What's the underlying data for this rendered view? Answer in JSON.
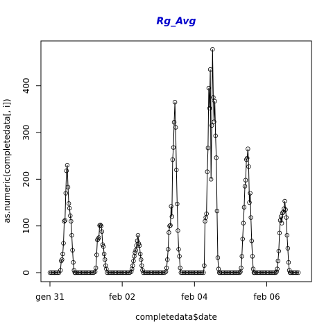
{
  "chart_data": {
    "type": "line",
    "title": "Rg_Avg",
    "xlabel": "completedata$date",
    "ylabel": "as.numeric(completedata[, i])",
    "x_unit": "hours from gen 31 00:00",
    "xlim": [
      -1,
      151
    ],
    "ylim": [
      -20,
      505
    ],
    "x_ticks": [
      {
        "label": "gen 31",
        "value": 0
      },
      {
        "label": "feb 02",
        "value": 48
      },
      {
        "label": "feb 04",
        "value": 96
      },
      {
        "label": "feb 06",
        "value": 144
      }
    ],
    "y_ticks": [
      0,
      100,
      200,
      300,
      400
    ],
    "grid": false,
    "legend": "none",
    "marker": "open-circle",
    "series": [
      {
        "points": [
          [
            0,
            0
          ],
          [
            1,
            0
          ],
          [
            2,
            0
          ],
          [
            3,
            0
          ],
          [
            4,
            0
          ],
          [
            5,
            0
          ],
          [
            6,
            0
          ],
          [
            7,
            5
          ],
          [
            7.5,
            25
          ],
          [
            8,
            28
          ],
          [
            8.5,
            40
          ],
          [
            9,
            63
          ],
          [
            9.5,
            110
          ],
          [
            10,
            112
          ],
          [
            10.5,
            170
          ],
          [
            11,
            218
          ],
          [
            11.5,
            230
          ],
          [
            12,
            183
          ],
          [
            12.5,
            148
          ],
          [
            13,
            138
          ],
          [
            13.5,
            122
          ],
          [
            14,
            110
          ],
          [
            14.5,
            80
          ],
          [
            15,
            48
          ],
          [
            15.5,
            22
          ],
          [
            16,
            5
          ],
          [
            16.5,
            0
          ],
          [
            17,
            0
          ],
          [
            18,
            0
          ],
          [
            19,
            0
          ],
          [
            20,
            0
          ],
          [
            21,
            0
          ],
          [
            22,
            0
          ],
          [
            23,
            0
          ],
          [
            24,
            0
          ],
          [
            25,
            0
          ],
          [
            26,
            0
          ],
          [
            27,
            0
          ],
          [
            28,
            0
          ],
          [
            29,
            0
          ],
          [
            30,
            2
          ],
          [
            30.5,
            10
          ],
          [
            31,
            38
          ],
          [
            31.5,
            70
          ],
          [
            32,
            72
          ],
          [
            32.5,
            75
          ],
          [
            33,
            101
          ],
          [
            33.5,
            102
          ],
          [
            34,
            100
          ],
          [
            34.5,
            88
          ],
          [
            35,
            60
          ],
          [
            35.5,
            56
          ],
          [
            36,
            40
          ],
          [
            36.5,
            28
          ],
          [
            37,
            15
          ],
          [
            37.5,
            8
          ],
          [
            38,
            0
          ],
          [
            39,
            0
          ],
          [
            40,
            0
          ],
          [
            41,
            0
          ],
          [
            42,
            0
          ],
          [
            43,
            0
          ],
          [
            44,
            0
          ],
          [
            45,
            0
          ],
          [
            46,
            0
          ],
          [
            47,
            0
          ],
          [
            48,
            0
          ],
          [
            49,
            0
          ],
          [
            50,
            0
          ],
          [
            51,
            0
          ],
          [
            52,
            0
          ],
          [
            53,
            0
          ],
          [
            54,
            2
          ],
          [
            54.5,
            8
          ],
          [
            55,
            15
          ],
          [
            55.5,
            25
          ],
          [
            56,
            35
          ],
          [
            56.5,
            43
          ],
          [
            57,
            48
          ],
          [
            57.5,
            58
          ],
          [
            58,
            68
          ],
          [
            58.5,
            80
          ],
          [
            59,
            62
          ],
          [
            59.5,
            58
          ],
          [
            60,
            40
          ],
          [
            60.5,
            28
          ],
          [
            61,
            15
          ],
          [
            61.5,
            5
          ],
          [
            62,
            0
          ],
          [
            63,
            0
          ],
          [
            64,
            0
          ],
          [
            65,
            0
          ],
          [
            66,
            0
          ],
          [
            67,
            0
          ],
          [
            68,
            0
          ],
          [
            69,
            0
          ],
          [
            70,
            0
          ],
          [
            71,
            0
          ],
          [
            72,
            0
          ],
          [
            73,
            0
          ],
          [
            74,
            0
          ],
          [
            75,
            0
          ],
          [
            76,
            0
          ],
          [
            77,
            2
          ],
          [
            77.5,
            10
          ],
          [
            78,
            28
          ],
          [
            78.5,
            50
          ],
          [
            79,
            86
          ],
          [
            79.5,
            100
          ],
          [
            80,
            101
          ],
          [
            80.5,
            142
          ],
          [
            81,
            120
          ],
          [
            81.5,
            242
          ],
          [
            82,
            268
          ],
          [
            82.5,
            322
          ],
          [
            83,
            365
          ],
          [
            83.5,
            311
          ],
          [
            84,
            220
          ],
          [
            84.5,
            147
          ],
          [
            85,
            90
          ],
          [
            85.5,
            50
          ],
          [
            86,
            35
          ],
          [
            86.5,
            10
          ],
          [
            87,
            0
          ],
          [
            88,
            0
          ],
          [
            89,
            0
          ],
          [
            90,
            0
          ],
          [
            91,
            0
          ],
          [
            92,
            0
          ],
          [
            93,
            0
          ],
          [
            94,
            0
          ],
          [
            95,
            0
          ],
          [
            96,
            0
          ],
          [
            97,
            0
          ],
          [
            98,
            0
          ],
          [
            99,
            0
          ],
          [
            100,
            0
          ],
          [
            101,
            0
          ],
          [
            102,
            0
          ],
          [
            102.5,
            15
          ],
          [
            103,
            110
          ],
          [
            103.5,
            118
          ],
          [
            104,
            126
          ],
          [
            104.5,
            216
          ],
          [
            105,
            267
          ],
          [
            105.5,
            395
          ],
          [
            106,
            352
          ],
          [
            106.5,
            435
          ],
          [
            107,
            200
          ],
          [
            107.5,
            315
          ],
          [
            108,
            478
          ],
          [
            108.5,
            375
          ],
          [
            109,
            323
          ],
          [
            109.5,
            367
          ],
          [
            110,
            293
          ],
          [
            110.5,
            246
          ],
          [
            111,
            132
          ],
          [
            111.5,
            32
          ],
          [
            112,
            8
          ],
          [
            112.5,
            0
          ],
          [
            113,
            0
          ],
          [
            114,
            0
          ],
          [
            115,
            0
          ],
          [
            116,
            0
          ],
          [
            117,
            0
          ],
          [
            118,
            0
          ],
          [
            119,
            0
          ],
          [
            120,
            0
          ],
          [
            121,
            0
          ],
          [
            122,
            0
          ],
          [
            123,
            0
          ],
          [
            124,
            0
          ],
          [
            125,
            0
          ],
          [
            126,
            0
          ],
          [
            126.5,
            2
          ],
          [
            127,
            10
          ],
          [
            127.5,
            35
          ],
          [
            128,
            72
          ],
          [
            128.5,
            106
          ],
          [
            129,
            140
          ],
          [
            129.5,
            185
          ],
          [
            130,
            198
          ],
          [
            130.5,
            242
          ],
          [
            131,
            245
          ],
          [
            131.5,
            265
          ],
          [
            132,
            227
          ],
          [
            132.5,
            150
          ],
          [
            133,
            170
          ],
          [
            133.5,
            118
          ],
          [
            134,
            68
          ],
          [
            134.5,
            35
          ],
          [
            135,
            8
          ],
          [
            135.5,
            0
          ],
          [
            136,
            0
          ],
          [
            137,
            0
          ],
          [
            138,
            0
          ],
          [
            139,
            0
          ],
          [
            140,
            0
          ],
          [
            141,
            0
          ],
          [
            142,
            0
          ],
          [
            143,
            0
          ],
          [
            144,
            0
          ],
          [
            145,
            0
          ],
          [
            146,
            0
          ],
          [
            147,
            0
          ],
          [
            148,
            0
          ],
          [
            149,
            0
          ],
          [
            150,
            0
          ],
          [
            150.5,
            2
          ],
          [
            151,
            8
          ],
          [
            151.5,
            25
          ],
          [
            152,
            46
          ],
          [
            152.5,
            85
          ],
          [
            153,
            112
          ],
          [
            153.5,
            120
          ],
          [
            154,
            106
          ],
          [
            154.5,
            128
          ],
          [
            155,
            130
          ],
          [
            155.5,
            137
          ],
          [
            156,
            153
          ],
          [
            156.5,
            135
          ],
          [
            157,
            118
          ],
          [
            157.5,
            80
          ],
          [
            158,
            52
          ],
          [
            158.5,
            22
          ],
          [
            159,
            5
          ],
          [
            159.5,
            0
          ],
          [
            160,
            0
          ],
          [
            161,
            0
          ],
          [
            162,
            0
          ],
          [
            163,
            0
          ],
          [
            164,
            0
          ],
          [
            165,
            0
          ]
        ]
      }
    ]
  }
}
